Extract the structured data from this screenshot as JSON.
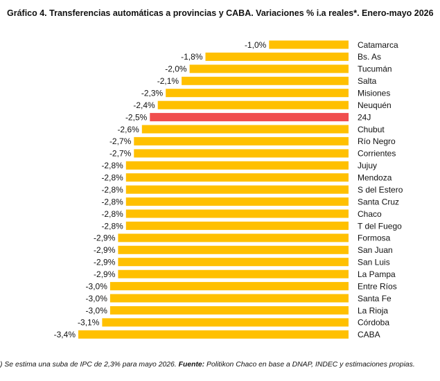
{
  "title": "Gráfico 4. Transferencias automáticas a provincias y CABA. Variaciones % i.a reales*. Enero-mayo 2026",
  "footnote": {
    "note": ") Se estima una suba de IPC de 2,3% para mayo 2026.",
    "source_label": "Fuente:",
    "source_text": "Politikon Chaco en base a DNAP, INDEC y estimaciones propias."
  },
  "colors": {
    "bar": "#FFC000",
    "highlight": "#F04E4E"
  },
  "chart_data": {
    "type": "bar",
    "orientation": "horizontal",
    "title": "Gráfico 4. Transferencias automáticas a provincias y CABA. Variaciones % i.a reales*. Enero-mayo 2026",
    "xlim": [
      -3.4,
      0
    ],
    "grid": false,
    "legend": "none",
    "highlight_category": "24J",
    "categories": [
      "Catamarca",
      "Bs. As",
      "Tucumán",
      "Salta",
      "Misiones",
      "Neuquén",
      "24J",
      "Chubut",
      "Río Negro",
      "Corrientes",
      "Jujuy",
      "Mendoza",
      "S del Estero",
      "Santa Cruz",
      "Chaco",
      "T del Fuego",
      "Formosa",
      "San Juan",
      "San Luis",
      "La Pampa",
      "Entre Ríos",
      "Santa Fe",
      "La Rioja",
      "Córdoba",
      "CABA"
    ],
    "values": [
      -1.0,
      -1.8,
      -2.0,
      -2.1,
      -2.3,
      -2.4,
      -2.5,
      -2.6,
      -2.7,
      -2.7,
      -2.8,
      -2.8,
      -2.8,
      -2.8,
      -2.8,
      -2.8,
      -2.9,
      -2.9,
      -2.9,
      -2.9,
      -3.0,
      -3.0,
      -3.0,
      -3.1,
      -3.4
    ],
    "data_labels": [
      "-1,0%",
      "-1,8%",
      "-2,0%",
      "-2,1%",
      "-2,3%",
      "-2,4%",
      "-2,5%",
      "-2,6%",
      "-2,7%",
      "-2,7%",
      "-2,8%",
      "-2,8%",
      "-2,8%",
      "-2,8%",
      "-2,8%",
      "-2,8%",
      "-2,9%",
      "-2,9%",
      "-2,9%",
      "-2,9%",
      "-3,0%",
      "-3,0%",
      "-3,0%",
      "-3,1%",
      "-3,4%"
    ]
  }
}
